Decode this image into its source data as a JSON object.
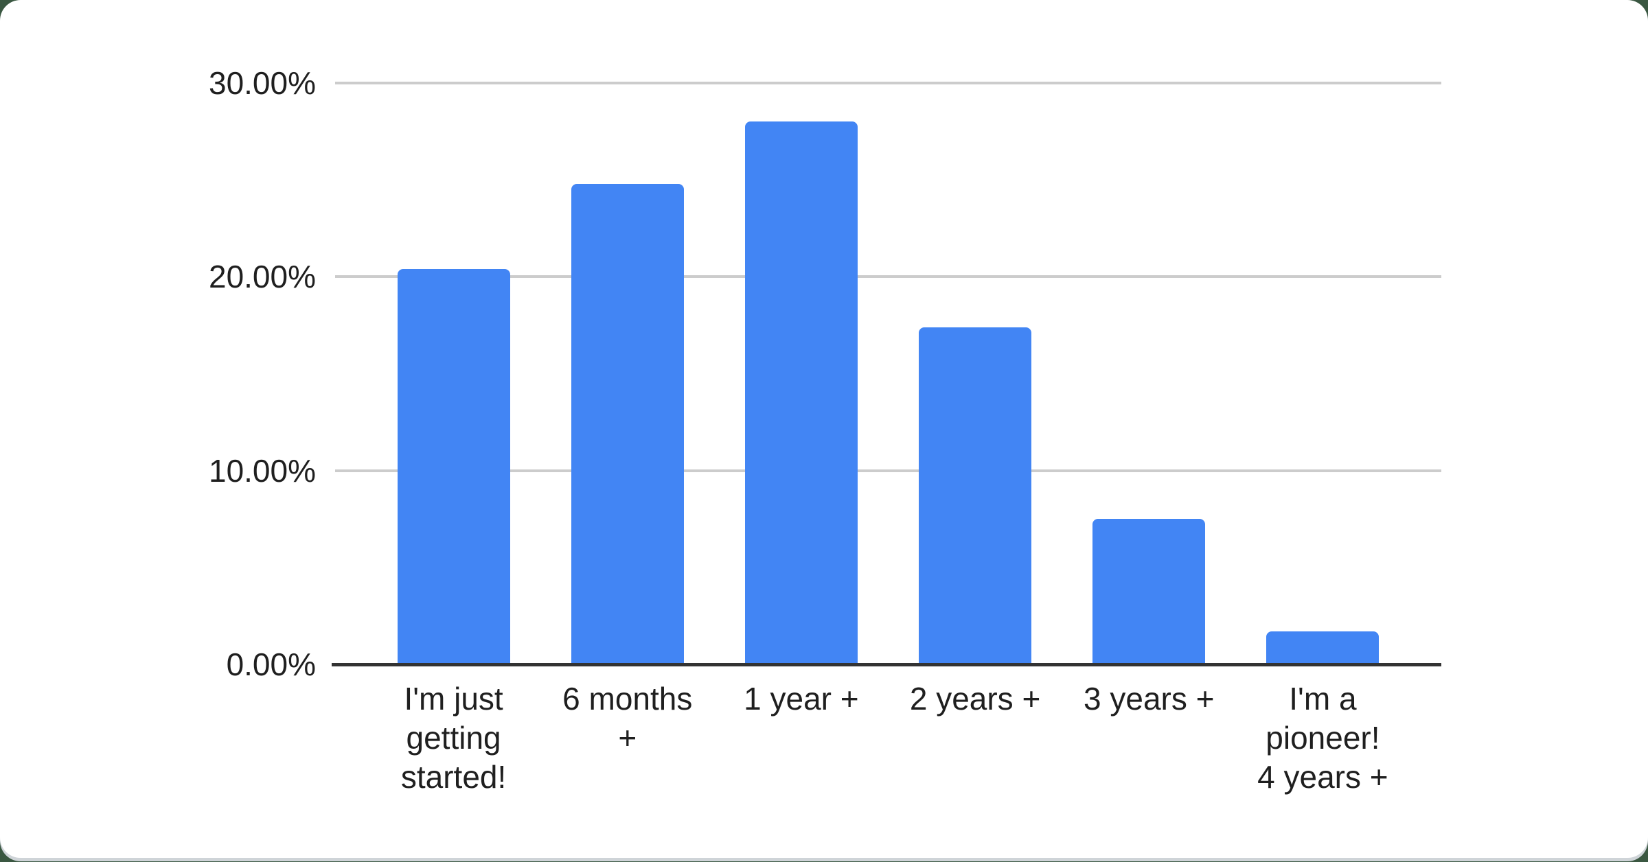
{
  "chart_data": {
    "type": "bar",
    "title": "",
    "xlabel": "",
    "ylabel": "",
    "categories": [
      "I'm just getting started!",
      "6 months +",
      "1 year +",
      "2 years +",
      "3 years +",
      "I'm a pioneer! 4 years +"
    ],
    "x_tick_lines": [
      "I'm just\ngetting\nstarted!",
      "6 months\n+",
      "1 year +",
      "2 years +",
      "3 years +",
      "I'm a\npioneer!\n4 years +"
    ],
    "values": [
      20.4,
      24.8,
      28.0,
      17.4,
      7.5,
      1.7
    ],
    "value_unit": "percent",
    "ylim": [
      0,
      30
    ],
    "y_ticks": [
      {
        "value": 30,
        "label": "30.00%"
      },
      {
        "value": 20,
        "label": "20.00%"
      },
      {
        "value": 10,
        "label": "10.00%"
      },
      {
        "value": 0,
        "label": "0.00%"
      }
    ],
    "grid": true,
    "legend": "none",
    "colors": {
      "bar": "#4285f4",
      "gridline": "#cccccc",
      "axis_line": "#333333",
      "tick_text": "#1f1f1f",
      "card_background": "#ffffff",
      "page_background": "#3a5741"
    }
  }
}
